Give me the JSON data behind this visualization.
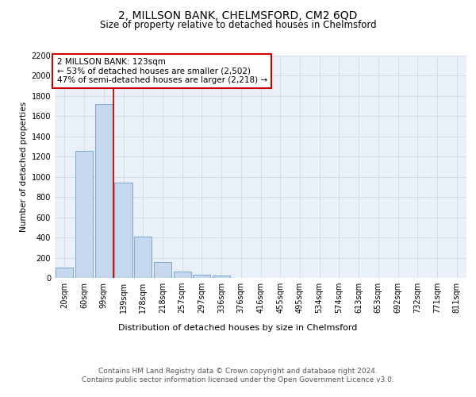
{
  "title": "2, MILLSON BANK, CHELMSFORD, CM2 6QD",
  "subtitle": "Size of property relative to detached houses in Chelmsford",
  "xlabel": "Distribution of detached houses by size in Chelmsford",
  "ylabel": "Number of detached properties",
  "categories": [
    "20sqm",
    "60sqm",
    "99sqm",
    "139sqm",
    "178sqm",
    "218sqm",
    "257sqm",
    "297sqm",
    "336sqm",
    "376sqm",
    "416sqm",
    "455sqm",
    "495sqm",
    "534sqm",
    "574sqm",
    "613sqm",
    "653sqm",
    "692sqm",
    "732sqm",
    "771sqm",
    "811sqm"
  ],
  "values": [
    105,
    1260,
    1720,
    940,
    410,
    155,
    65,
    35,
    20,
    0,
    0,
    0,
    0,
    0,
    0,
    0,
    0,
    0,
    0,
    0,
    0
  ],
  "bar_color": "#c5d8ed",
  "bar_edge_color": "#5a90c0",
  "vline_x_index": 2.5,
  "vline_color": "#cc0000",
  "annotation_text": "2 MILLSON BANK: 123sqm\n← 53% of detached houses are smaller (2,502)\n47% of semi-detached houses are larger (2,218) →",
  "annotation_box_color": "#ffffff",
  "annotation_box_edge_color": "#cc0000",
  "ylim": [
    0,
    2200
  ],
  "yticks": [
    0,
    200,
    400,
    600,
    800,
    1000,
    1200,
    1400,
    1600,
    1800,
    2000,
    2200
  ],
  "grid_color": "#d0d8e8",
  "background_color": "#eaf0f8",
  "footer_line1": "Contains HM Land Registry data © Crown copyright and database right 2024.",
  "footer_line2": "Contains public sector information licensed under the Open Government Licence v3.0.",
  "title_fontsize": 10,
  "subtitle_fontsize": 8.5,
  "ylabel_fontsize": 7.5,
  "xlabel_fontsize": 8,
  "tick_fontsize": 7,
  "annotation_fontsize": 7.5,
  "footer_fontsize": 6.5
}
